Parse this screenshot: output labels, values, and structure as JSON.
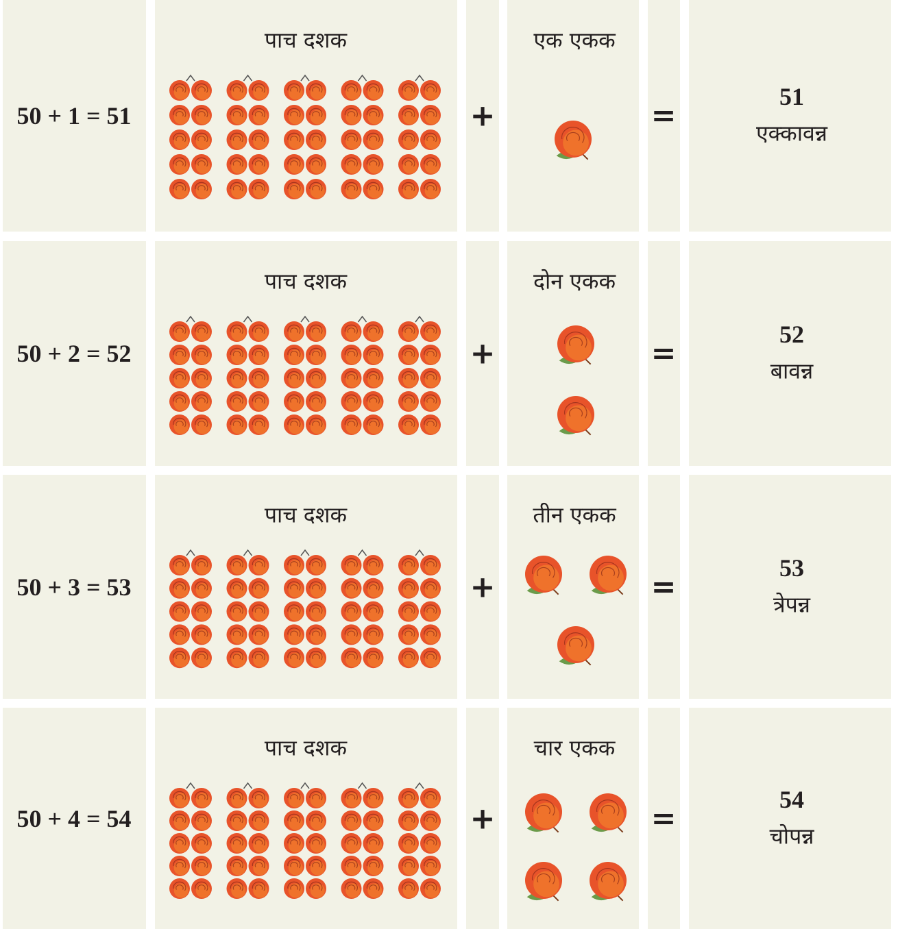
{
  "rows": [
    {
      "equation": "50 + 1 = 51",
      "tens_label": "पाच दशक",
      "plus": "+",
      "units_label": "एक एकक",
      "equals": "=",
      "number": "51",
      "word": "एक्कावन्न"
    },
    {
      "equation": "50 + 2 = 52",
      "tens_label": "पाच दशक",
      "plus": "+",
      "units_label": "दोन एकक",
      "equals": "=",
      "number": "52",
      "word": "बावन्न"
    },
    {
      "equation": "50 + 3 = 53",
      "tens_label": "पाच दशक",
      "plus": "+",
      "units_label": "तीन एकक",
      "equals": "=",
      "number": "53",
      "word": "त्रेपन्न"
    },
    {
      "equation": "50 + 4 = 54",
      "tens_label": "पाच दशक",
      "plus": "+",
      "units_label": "चार एकक",
      "equals": "=",
      "number": "54",
      "word": "चोपन्न"
    }
  ]
}
